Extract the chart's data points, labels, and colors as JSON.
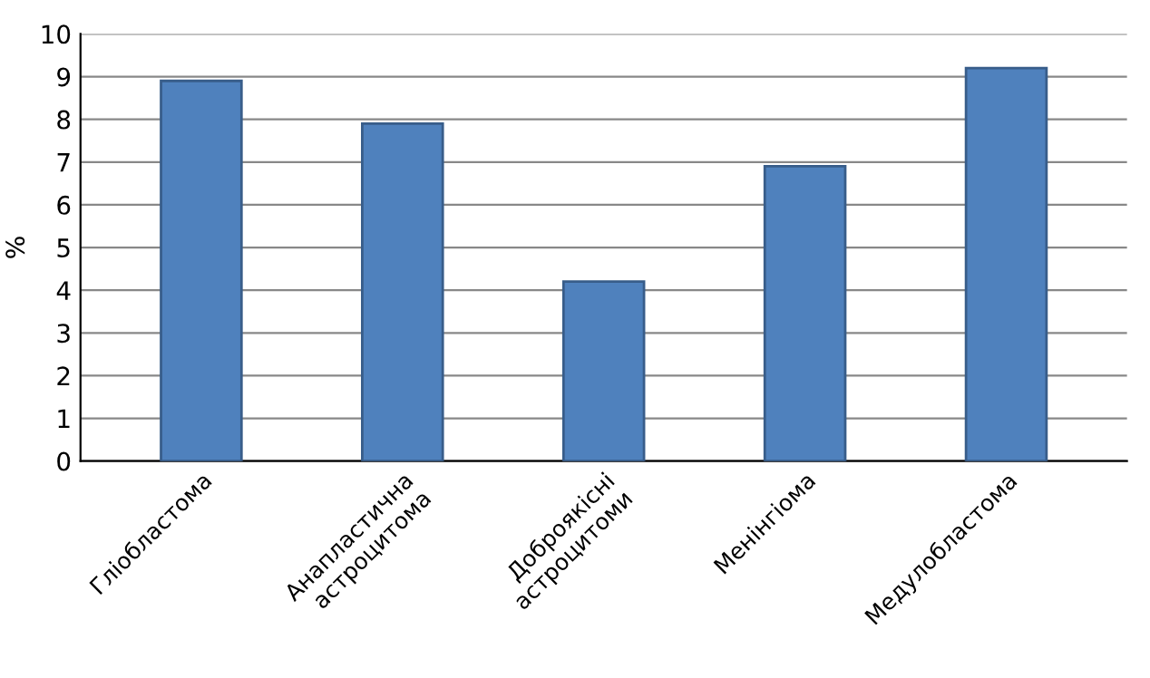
{
  "chart_data": {
    "type": "bar",
    "ylabel": "%",
    "categories": [
      "Гліобластома",
      "Анапластична\nастроцитома",
      "Доброякісні\nастроцитоми",
      "Менінгіома",
      "Медулобластома"
    ],
    "values": [
      8.9,
      7.9,
      4.2,
      6.9,
      9.2
    ],
    "color": "#4f81bd",
    "ylim": [
      0,
      10
    ],
    "yticks": [
      0,
      1,
      2,
      3,
      4,
      5,
      6,
      7,
      8,
      9,
      10
    ],
    "grid": "y"
  }
}
